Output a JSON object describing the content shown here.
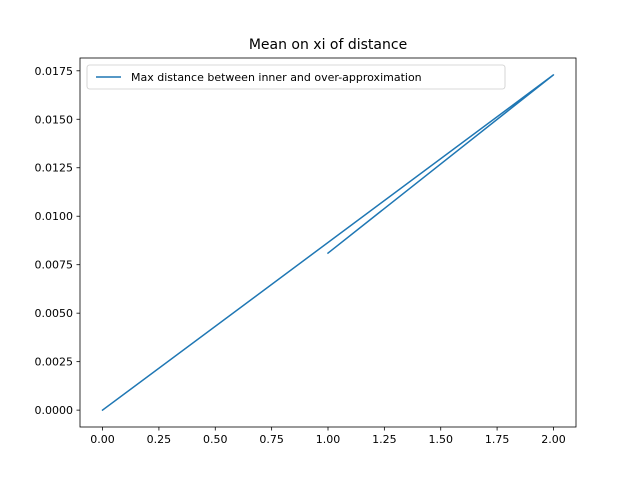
{
  "chart_data": {
    "type": "line",
    "title": "Mean on xi of distance",
    "xlabel": "",
    "ylabel": "",
    "xlim": [
      -0.1,
      2.1
    ],
    "ylim": [
      -0.00087,
      0.01816
    ],
    "xticks": [
      0.0,
      0.25,
      0.5,
      0.75,
      1.0,
      1.25,
      1.5,
      1.75,
      2.0
    ],
    "xtick_labels": [
      "0.00",
      "0.25",
      "0.50",
      "0.75",
      "1.00",
      "1.25",
      "1.50",
      "1.75",
      "2.00"
    ],
    "yticks": [
      0.0,
      0.0025,
      0.005,
      0.0075,
      0.01,
      0.0125,
      0.015,
      0.0175
    ],
    "ytick_labels": [
      "0.0000",
      "0.0025",
      "0.0050",
      "0.0075",
      "0.0100",
      "0.0125",
      "0.0150",
      "0.0175"
    ],
    "grid": false,
    "legend_position": "upper-left",
    "series": [
      {
        "name": "Max distance between inner and over-approximation",
        "color": "#1f77b4",
        "x": [
          0.0,
          2.0,
          1.0
        ],
        "y": [
          0.0,
          0.01729,
          0.0081
        ]
      }
    ]
  }
}
